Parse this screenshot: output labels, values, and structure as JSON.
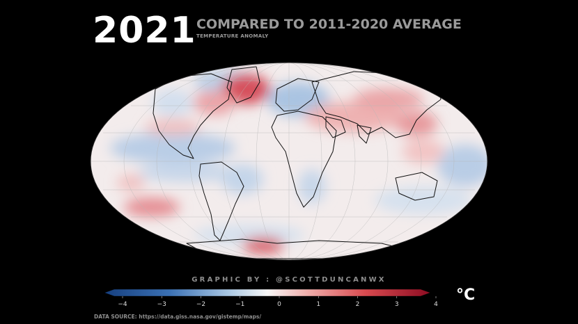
{
  "title": {
    "year": "2021",
    "headline": "COMPARED TO 2011-2020 AVERAGE",
    "subheading": "TEMPERATURE ANOMALY"
  },
  "map": {
    "projection": "mollweide",
    "variable": "temperature anomaly",
    "highlights": [
      {
        "region": "Greenland / northeast Canada",
        "anomaly": "warm"
      },
      {
        "region": "North Africa / Middle East",
        "anomaly": "warm"
      },
      {
        "region": "Central Asia",
        "anomaly": "warm"
      },
      {
        "region": "Scandinavia / Northeast Atlantic",
        "anomaly": "cool"
      },
      {
        "region": "Eastern Pacific (equatorial)",
        "anomaly": "cool"
      },
      {
        "region": "Antarctic Peninsula",
        "anomaly": "warm"
      }
    ]
  },
  "credit": "GRAPHIC BY : @SCOTTDUNCANWX",
  "colorbar": {
    "ticks": [
      "−4",
      "−3",
      "−2",
      "−1",
      "0",
      "1",
      "2",
      "3",
      "4"
    ],
    "min": -4,
    "max": 4,
    "unit": "°C",
    "colors": {
      "cold": "#1c4f97",
      "neutral": "#f7f7f7",
      "warm": "#b2112a"
    }
  },
  "source": "DATA SOURCE: https://data.giss.nasa.gov/gistemp/maps/"
}
